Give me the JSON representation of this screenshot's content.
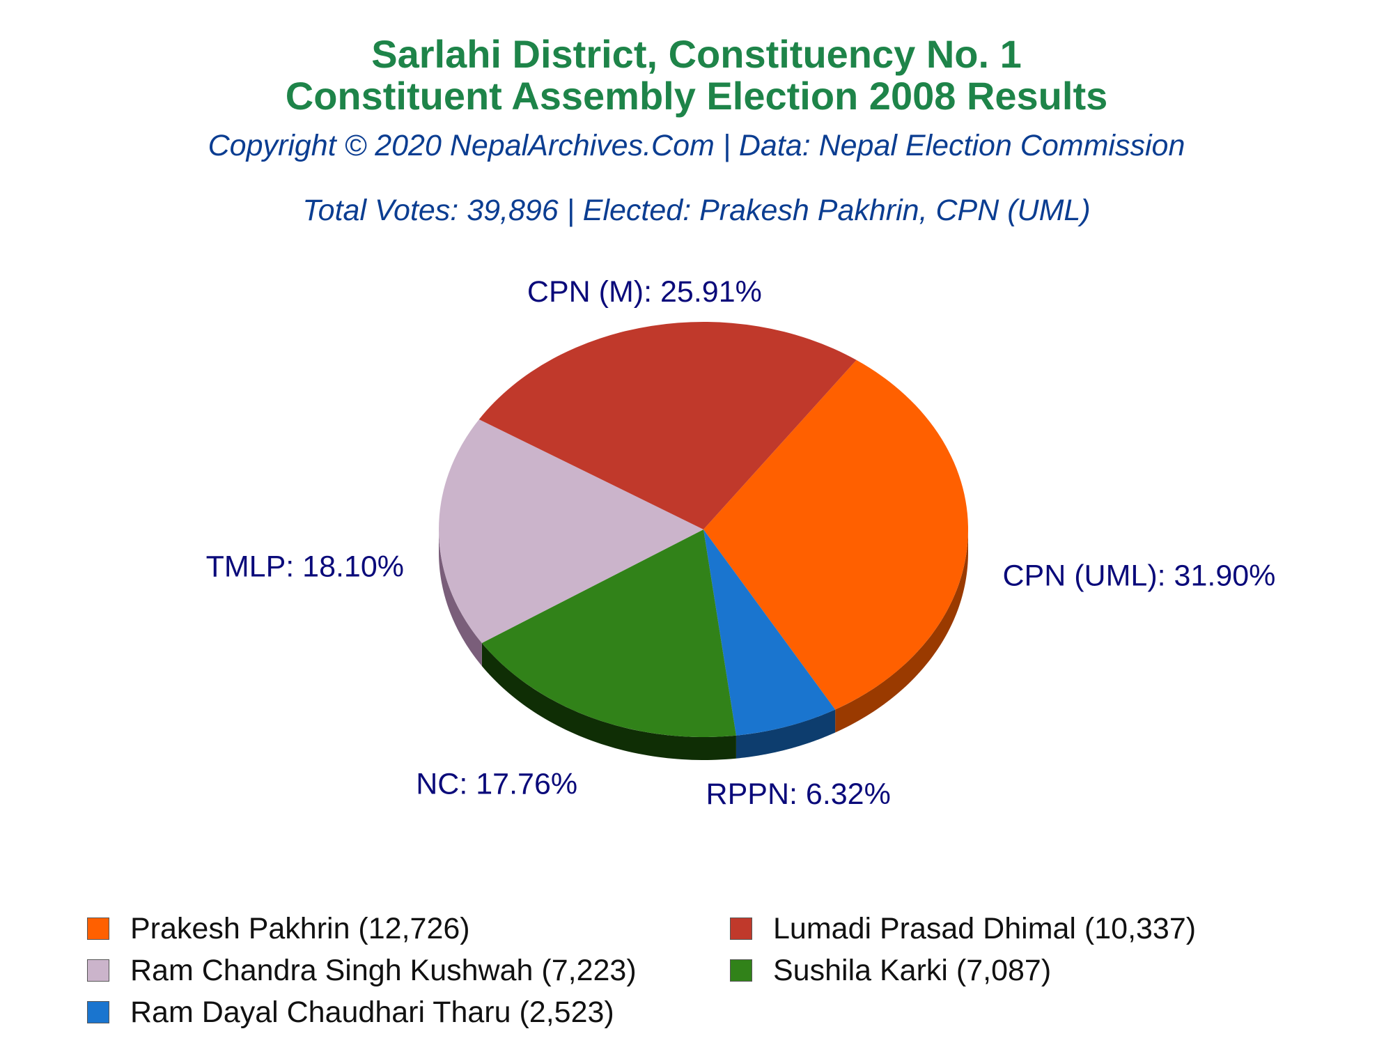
{
  "header": {
    "title_line1": "Sarlahi District, Constituency No. 1",
    "title_line2": "Constituent Assembly Election 2008 Results",
    "copyright": "Copyright © 2020 NepalArchives.Com | Data: Nepal Election Commission",
    "summary": "Total Votes: 39,896 | Elected: Prakesh Pakhrin, CPN (UML)"
  },
  "chart_data": {
    "type": "pie",
    "slices": [
      {
        "party": "CPN (UML)",
        "label": "CPN (UML): 31.90%",
        "percent": 31.9,
        "candidate": "Prakesh Pakhrin (12,726)",
        "votes": 12726,
        "color": "#ff6000",
        "side_color": "#9a3a00"
      },
      {
        "party": "RPPN",
        "label": "RPPN: 6.32%",
        "percent": 6.32,
        "candidate": "Ram Dayal Chaudhari Tharu (2,523)",
        "votes": 2523,
        "color": "#1a75cf",
        "side_color": "#0d3d6e"
      },
      {
        "party": "NC",
        "label": "NC: 17.76%",
        "percent": 17.76,
        "candidate": "Sushila Karki (7,087)",
        "votes": 7087,
        "color": "#318219",
        "side_color": "#0f2e05"
      },
      {
        "party": "TMLP",
        "label": "TMLP: 18.10%",
        "percent": 18.1,
        "candidate": "Ram Chandra Singh Kushwah (7,223)",
        "votes": 7223,
        "color": "#cbb4cb",
        "side_color": "#7a5e7a"
      },
      {
        "party": "CPN (M)",
        "label": "CPN (M): 25.91%",
        "percent": 25.91,
        "candidate": "Lumadi Prasad Dhimal (10,337)",
        "votes": 10337,
        "color": "#c0392b",
        "side_color": "#5e0000"
      }
    ],
    "legend_order": [
      0,
      4,
      3,
      2,
      1
    ],
    "legend_columns": 2,
    "legend_placement": "bottom"
  }
}
